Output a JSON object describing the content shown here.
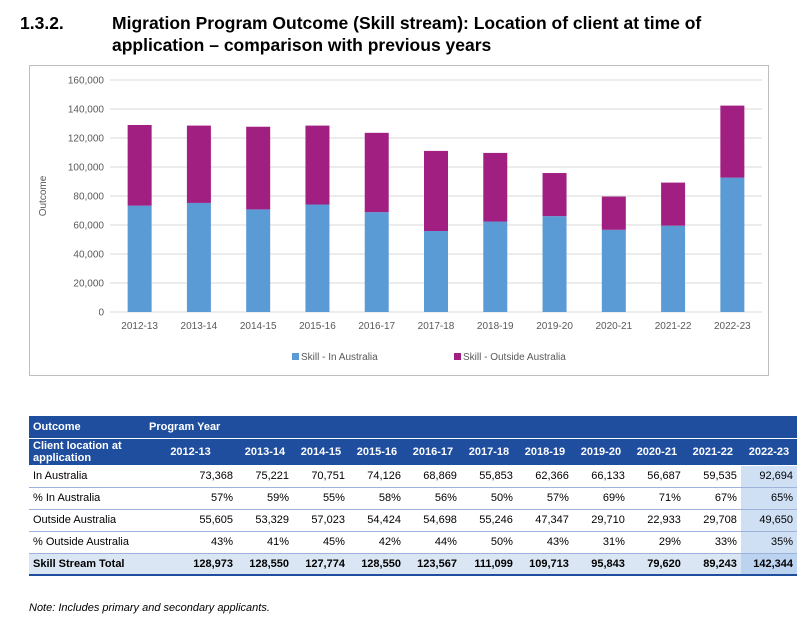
{
  "heading": {
    "number": "1.3.2.",
    "title": "Migration Program Outcome (Skill stream): Location of client at time of application – comparison with previous years"
  },
  "chart_data": {
    "type": "bar",
    "stacked": true,
    "categories": [
      "2012-13",
      "2013-14",
      "2014-15",
      "2015-16",
      "2016-17",
      "2017-18",
      "2018-19",
      "2019-20",
      "2020-21",
      "2021-22",
      "2022-23"
    ],
    "series": [
      {
        "name": "Skill - In Australia",
        "color": "#5b9bd5",
        "values": [
          73368,
          75221,
          70751,
          74126,
          68869,
          55853,
          62366,
          66133,
          56687,
          59535,
          92694
        ]
      },
      {
        "name": "Skill - Outside Australia",
        "color": "#a21f82",
        "values": [
          55605,
          53329,
          57023,
          54424,
          54698,
          55246,
          47347,
          29710,
          22933,
          29708,
          49650
        ]
      }
    ],
    "ylabel": "Outcome",
    "ylim": [
      0,
      160000
    ],
    "yticks": [
      "0",
      "20,000",
      "40,000",
      "60,000",
      "80,000",
      "100,000",
      "120,000",
      "140,000",
      "160,000"
    ],
    "grid": true,
    "legend_position": "bottom"
  },
  "table": {
    "header1": [
      "Outcome",
      "Program Year"
    ],
    "header2_label": "Client location at application",
    "years": [
      "2012-13",
      "2013-14",
      "2014-15",
      "2015-16",
      "2016-17",
      "2017-18",
      "2018-19",
      "2019-20",
      "2020-21",
      "2021-22",
      "2022-23"
    ],
    "rows": [
      {
        "label": "In Australia",
        "values": [
          "73,368",
          "75,221",
          "70,751",
          "74,126",
          "68,869",
          "55,853",
          "62,366",
          "66,133",
          "56,687",
          "59,535",
          "92,694"
        ]
      },
      {
        "label": "% In Australia",
        "values": [
          "57%",
          "59%",
          "55%",
          "58%",
          "56%",
          "50%",
          "57%",
          "69%",
          "71%",
          "67%",
          "65%"
        ]
      },
      {
        "label": "Outside Australia",
        "values": [
          "55,605",
          "53,329",
          "57,023",
          "54,424",
          "54,698",
          "55,246",
          "47,347",
          "29,710",
          "22,933",
          "29,708",
          "49,650"
        ]
      },
      {
        "label": "% Outside Australia",
        "values": [
          "43%",
          "41%",
          "45%",
          "42%",
          "44%",
          "50%",
          "43%",
          "31%",
          "29%",
          "33%",
          "35%"
        ]
      }
    ],
    "total": {
      "label": "Skill Stream Total",
      "values": [
        "128,973",
        "128,550",
        "127,774",
        "128,550",
        "123,567",
        "111,099",
        "109,713",
        "95,843",
        "79,620",
        "89,243",
        "142,344"
      ]
    }
  },
  "note": "Note: Includes primary and secondary applicants."
}
